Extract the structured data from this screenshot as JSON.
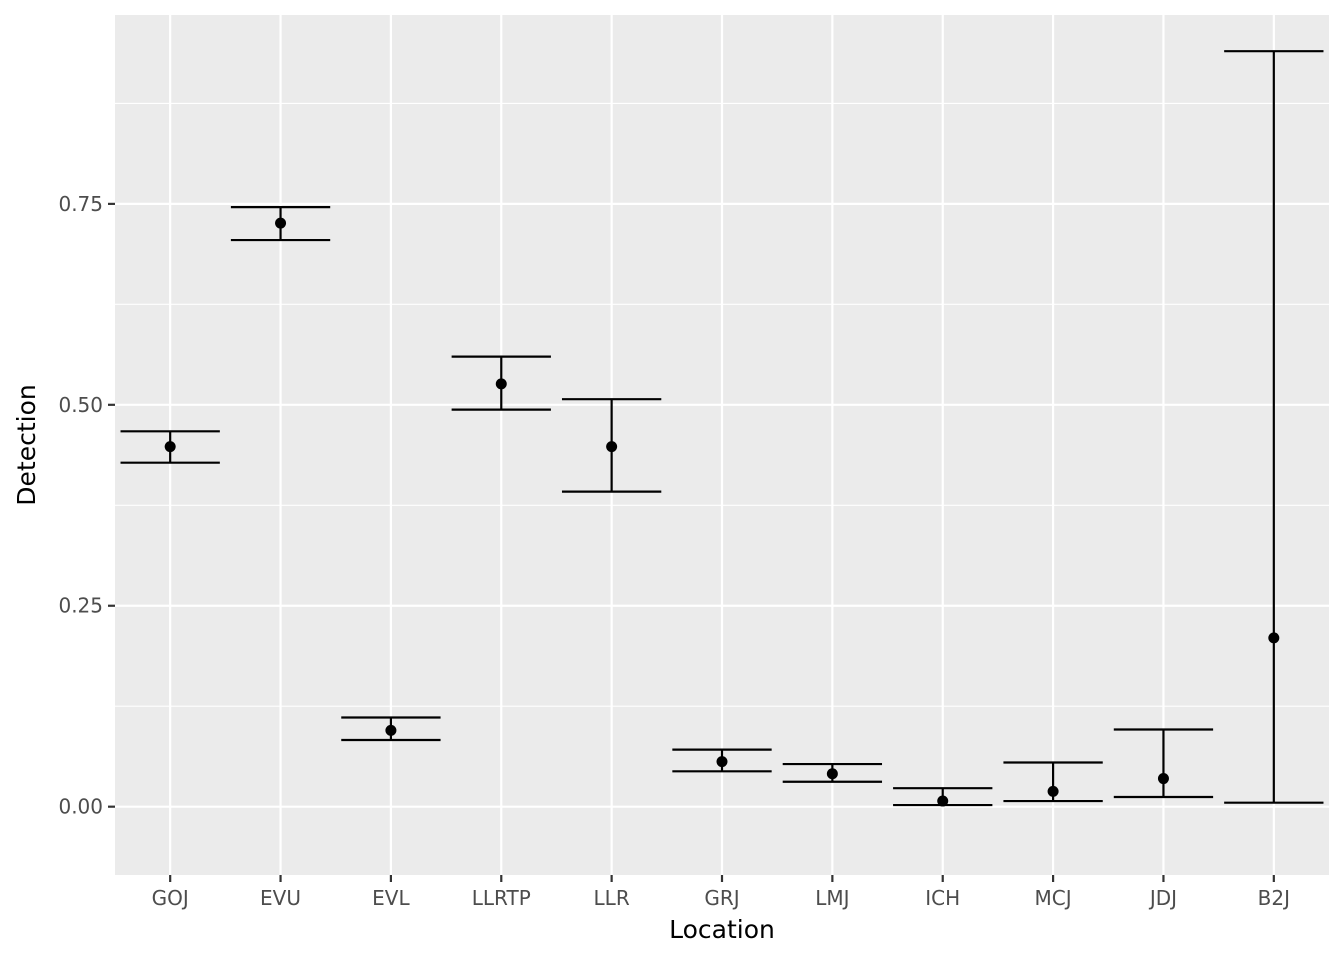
{
  "chart_data": {
    "type": "errorbar",
    "xlabel": "Location",
    "ylabel": "Detection",
    "ylim": [
      -0.085,
      0.985
    ],
    "yticks": [
      0.0,
      0.25,
      0.5,
      0.75
    ],
    "ytick_labels": [
      "0.00",
      "0.25",
      "0.50",
      "0.75"
    ],
    "categories": [
      "GOJ",
      "EVU",
      "EVL",
      "LLRTP",
      "LLR",
      "GRJ",
      "LMJ",
      "ICH",
      "MCJ",
      "JDJ",
      "B2J"
    ],
    "estimate": [
      0.448,
      0.726,
      0.095,
      0.526,
      0.448,
      0.056,
      0.041,
      0.007,
      0.019,
      0.035,
      0.21
    ],
    "lower": [
      0.428,
      0.705,
      0.083,
      0.494,
      0.392,
      0.044,
      0.031,
      0.002,
      0.007,
      0.012,
      0.005
    ],
    "upper": [
      0.467,
      0.746,
      0.111,
      0.56,
      0.507,
      0.071,
      0.053,
      0.023,
      0.055,
      0.096,
      0.94
    ],
    "grid": true,
    "legend": "none",
    "colors": {
      "panel_background": "#ebebeb",
      "grid_major": "#ffffff",
      "marks": "#000000",
      "tick_text": "#4d4d4d",
      "tick_marks": "#333333"
    }
  }
}
